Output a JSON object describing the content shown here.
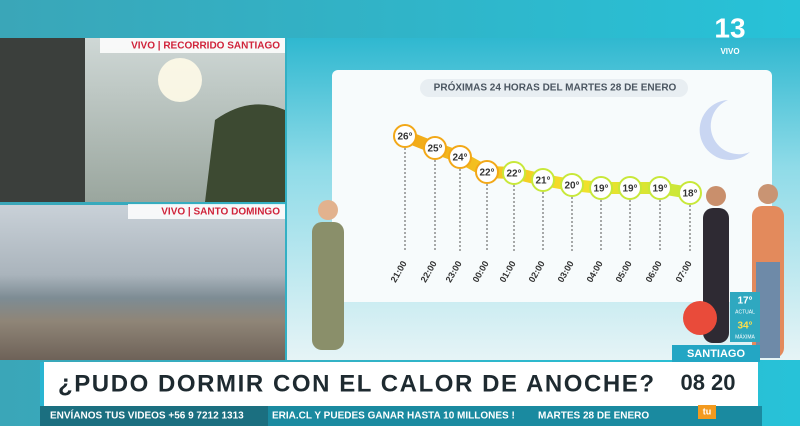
{
  "broadcast": {
    "logo": "13",
    "logo_status": "VIVO"
  },
  "insets": [
    {
      "label": "VIVO | RECORRIDO SANTIAGO"
    },
    {
      "label": "VIVO | SANTO DOMINGO"
    }
  ],
  "forecast": {
    "title": "PRÓXIMAS 24 HORAS DEL MARTES 28 DE ENERO",
    "points": [
      {
        "time": "21:00",
        "temp": "26°"
      },
      {
        "time": "22:00",
        "temp": "25°"
      },
      {
        "time": "23:00",
        "temp": "24°"
      },
      {
        "time": "00:00",
        "temp": "22°"
      },
      {
        "time": "01:00",
        "temp": "22°"
      },
      {
        "time": "02:00",
        "temp": "21°"
      },
      {
        "time": "03:00",
        "temp": "20°"
      },
      {
        "time": "04:00",
        "temp": "19°"
      },
      {
        "time": "05:00",
        "temp": "19°"
      },
      {
        "time": "06:00",
        "temp": "19°"
      },
      {
        "time": "07:00",
        "temp": "18°"
      }
    ]
  },
  "current": {
    "temp": "17°",
    "temp_label": "ACTUAL",
    "max": "34°",
    "max_label": "MÁXIMA",
    "city": "SANTIAGO"
  },
  "headline": "¿PUDO DORMIR CON EL CALOR DE ANOCHE?",
  "clock": "08 20",
  "ticker": {
    "whatsapp": "ENVÍANOS TUS VIDEOS +56 9 7212 1313",
    "promo": "ERIA.CL Y PUEDES GANAR HASTA 10 MILLONES !",
    "date": "MARTES 28 DE ENERO"
  },
  "channel_badge": "tu"
}
